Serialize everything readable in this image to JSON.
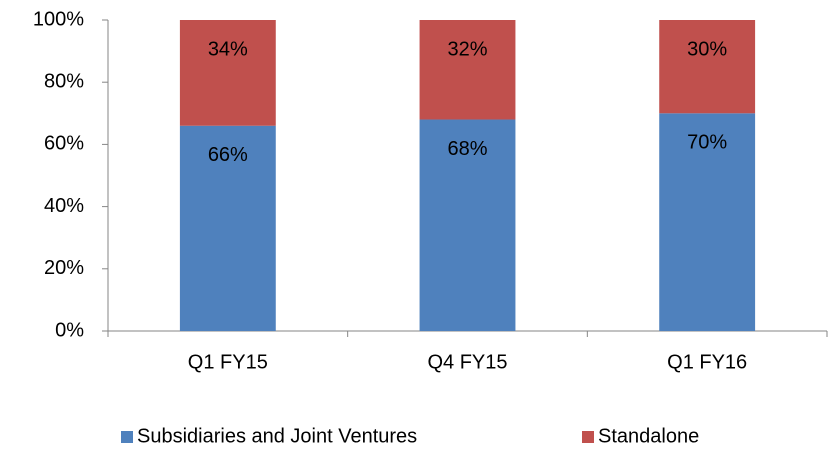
{
  "chart_data": {
    "type": "bar",
    "stacked": true,
    "categories": [
      "Q1 FY15",
      "Q4 FY15",
      "Q1 FY16"
    ],
    "series": [
      {
        "name": "Subsidiaries and Joint Ventures",
        "color": "#4f81bd",
        "values": [
          66,
          68,
          70
        ],
        "value_labels": [
          "66%",
          "68%",
          "70%"
        ]
      },
      {
        "name": "Standalone",
        "color": "#c0504d",
        "values": [
          34,
          32,
          30
        ],
        "value_labels": [
          "34%",
          "32%",
          "30%"
        ]
      }
    ],
    "ylim": [
      0,
      100
    ],
    "yticks": [
      {
        "value": 0,
        "label": "0%"
      },
      {
        "value": 20,
        "label": "20%"
      },
      {
        "value": 40,
        "label": "40%"
      },
      {
        "value": 60,
        "label": "60%"
      },
      {
        "value": 80,
        "label": "80%"
      },
      {
        "value": 100,
        "label": "100%"
      }
    ],
    "grid": false,
    "legend": "bottom"
  }
}
